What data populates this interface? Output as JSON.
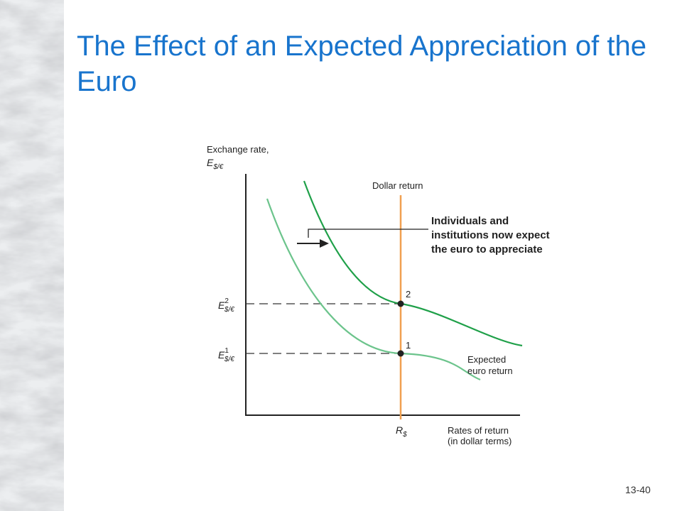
{
  "slide": {
    "title": "The Effect of an Expected Appreciation of the Euro",
    "number": "13-40"
  },
  "diagram": {
    "y_axis_label": "Exchange rate,",
    "y_axis_symbol": {
      "base": "E",
      "sub": "$/€"
    },
    "x_axis_label_line1": "Rates of return",
    "x_axis_label_line2": "(in dollar terms)",
    "x_axis_tick": {
      "base": "R",
      "sub": "$"
    },
    "y_ticks": [
      {
        "base": "E",
        "sup": "2",
        "sub": "$/€"
      },
      {
        "base": "E",
        "sup": "1",
        "sub": "$/€"
      }
    ],
    "dollar_return_label": "Dollar return",
    "expected_euro_return_line1": "Expected",
    "expected_euro_return_line2": "euro return",
    "callout": "Individuals and institutions now expect the euro to appreciate",
    "points": [
      "1",
      "2"
    ],
    "colors": {
      "dollar_return": "#f0a050",
      "curve_old": "#6cc48c",
      "curve_new": "#1fa049",
      "point": "#222222"
    }
  }
}
